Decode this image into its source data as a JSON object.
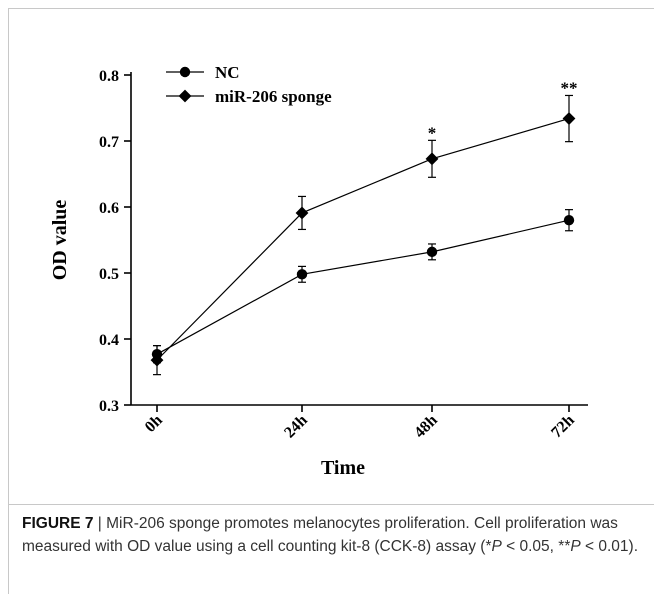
{
  "figure": {
    "caption_label": "FIGURE 7",
    "caption_separator": "|",
    "caption_text_1": "MiR-206 sponge promotes melanocytes proliferation. Cell proliferation was measured with OD value using a cell counting kit-8 (CCK-8) assay (*",
    "caption_p1": "P",
    "caption_text_2": " < 0.05, **",
    "caption_p2": "P",
    "caption_text_3": " < 0.01)."
  },
  "chart_data": {
    "type": "line",
    "xlabel": "Time",
    "ylabel": "OD value",
    "categories": [
      "0h",
      "24h",
      "48h",
      "72h"
    ],
    "ylim": [
      0.3,
      0.8
    ],
    "yticks": [
      0.3,
      0.4,
      0.5,
      0.6,
      0.7,
      0.8
    ],
    "ytick_labels": [
      "0.3",
      "0.4",
      "0.5",
      "0.6",
      "0.7",
      "0.8"
    ],
    "grid": false,
    "legend_position": "top-left",
    "series": [
      {
        "name": "NC",
        "marker": "circle",
        "values": [
          0.377,
          0.498,
          0.532,
          0.58
        ],
        "errors": [
          0.013,
          0.012,
          0.012,
          0.016
        ]
      },
      {
        "name": "miR-206 sponge",
        "marker": "diamond",
        "values": [
          0.368,
          0.591,
          0.673,
          0.734
        ],
        "errors": [
          0.022,
          0.025,
          0.028,
          0.035
        ]
      }
    ],
    "annotations": [
      {
        "category": "48h",
        "text": "*"
      },
      {
        "category": "72h",
        "text": "**"
      }
    ],
    "color": "#000000"
  }
}
